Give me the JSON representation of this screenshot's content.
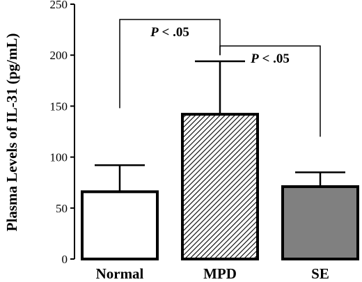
{
  "chart_data": {
    "type": "bar",
    "title": "",
    "xlabel": "",
    "ylabel": "Plasma Levels of IL-31 (pg/mL)",
    "ylim": [
      0,
      250
    ],
    "yticks": [
      0,
      50,
      100,
      150,
      200,
      250
    ],
    "categories": [
      "Normal",
      "MPD",
      "SE"
    ],
    "values": [
      66,
      142,
      71
    ],
    "errors": [
      26,
      52,
      14
    ],
    "fills": [
      "#ffffff",
      "hatch",
      "#808080"
    ],
    "significance": [
      {
        "from": 0,
        "to": 1,
        "p": "P",
        "text": " < .05",
        "y": 235
      },
      {
        "from": 1,
        "to": 2,
        "p": "P",
        "text": " < .05",
        "y": 209
      }
    ]
  }
}
